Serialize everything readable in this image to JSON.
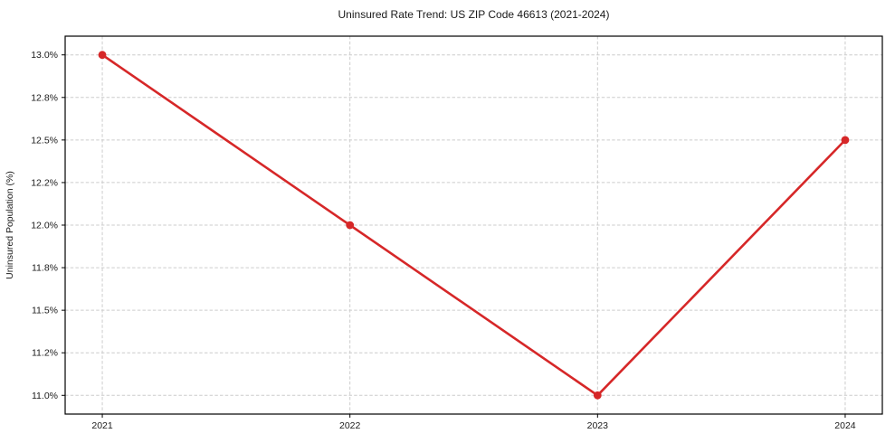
{
  "chart_data": {
    "type": "line",
    "title": "Uninsured Rate Trend: US ZIP Code 46613 (2021-2024)",
    "xlabel": "",
    "ylabel": "Uninsured Population (%)",
    "x": [
      2021,
      2022,
      2023,
      2024
    ],
    "series": [
      {
        "name": "uninsured-rate",
        "values": [
          13.0,
          12.0,
          11.0,
          12.5
        ]
      }
    ],
    "x_ticks": [
      {
        "value": 2021,
        "label": "2021"
      },
      {
        "value": 2022,
        "label": "2022"
      },
      {
        "value": 2023,
        "label": "2023"
      },
      {
        "value": 2024,
        "label": "2024"
      }
    ],
    "y_ticks": [
      {
        "value": 13.0,
        "label": "13.0%"
      },
      {
        "value": 12.75,
        "label": "12.8%"
      },
      {
        "value": 12.5,
        "label": "12.5%"
      },
      {
        "value": 12.25,
        "label": "12.2%"
      },
      {
        "value": 12.0,
        "label": "12.0%"
      },
      {
        "value": 11.75,
        "label": "11.8%"
      },
      {
        "value": 11.5,
        "label": "11.5%"
      },
      {
        "value": 11.25,
        "label": "11.2%"
      },
      {
        "value": 11.0,
        "label": "11.0%"
      }
    ],
    "xlim": [
      2020.85,
      2024.15
    ],
    "ylim": [
      10.89,
      13.11
    ],
    "grid": "dashed",
    "legend": "none",
    "colors": {
      "line": "#d62728",
      "marker": "#d62728",
      "grid": "#cccccc",
      "spine": "#000000",
      "text": "#1a1a1a",
      "background": "#ffffff"
    }
  }
}
